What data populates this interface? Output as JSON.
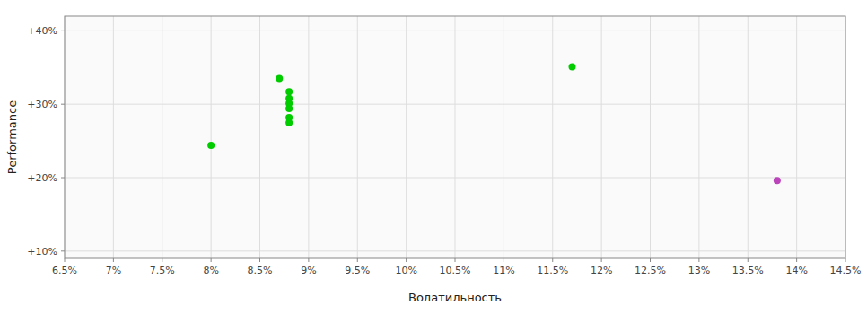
{
  "chart_data": {
    "type": "scatter",
    "xlabel": "Волатильность",
    "ylabel": "Performance",
    "xlim": [
      0.065,
      0.145
    ],
    "ylim": [
      0.09,
      0.42
    ],
    "xticks": [
      {
        "value": 0.065,
        "label": "6.5%"
      },
      {
        "value": 0.07,
        "label": "7%"
      },
      {
        "value": 0.075,
        "label": "7.5%"
      },
      {
        "value": 0.08,
        "label": "8%"
      },
      {
        "value": 0.085,
        "label": "8.5%"
      },
      {
        "value": 0.09,
        "label": "9%"
      },
      {
        "value": 0.095,
        "label": "9.5%"
      },
      {
        "value": 0.1,
        "label": "10%"
      },
      {
        "value": 0.105,
        "label": "10.5%"
      },
      {
        "value": 0.11,
        "label": "11%"
      },
      {
        "value": 0.115,
        "label": "11.5%"
      },
      {
        "value": 0.12,
        "label": "12%"
      },
      {
        "value": 0.125,
        "label": "12.5%"
      },
      {
        "value": 0.13,
        "label": "13%"
      },
      {
        "value": 0.135,
        "label": "13.5%"
      },
      {
        "value": 0.14,
        "label": "14%"
      },
      {
        "value": 0.145,
        "label": "14.5%"
      }
    ],
    "yticks": [
      {
        "value": 0.1,
        "label": "+10%"
      },
      {
        "value": 0.2,
        "label": "+20%"
      },
      {
        "value": 0.3,
        "label": "+30%"
      },
      {
        "value": 0.4,
        "label": "+40%"
      }
    ],
    "grid": true,
    "series": [
      {
        "color": "#00cc00",
        "x": [
          0.087,
          0.088,
          0.088,
          0.088,
          0.088,
          0.088,
          0.088,
          0.08,
          0.117
        ],
        "values": [
          0.335,
          0.317,
          0.308,
          0.301,
          0.294,
          0.282,
          0.275,
          0.244,
          0.351
        ]
      },
      {
        "color": "#bb44bb",
        "x": [
          0.138
        ],
        "values": [
          0.196
        ]
      }
    ]
  }
}
